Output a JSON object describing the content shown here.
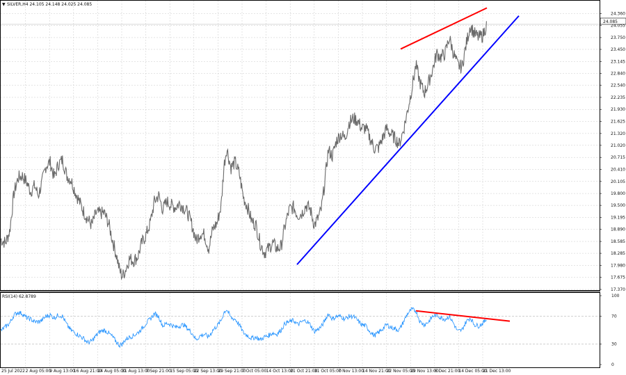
{
  "chart_data": {
    "type": "candlestick",
    "symbol_header": "SILVER,H4 24.105 24.148 24.025 24.085",
    "current_price": "24.085",
    "price_axis": {
      "ylim": [
        17.37,
        24.56
      ],
      "ticks": [
        "24.360",
        "24.055",
        "23.750",
        "23.450",
        "23.145",
        "22.840",
        "22.540",
        "22.235",
        "21.930",
        "21.625",
        "21.320",
        "21.020",
        "20.715",
        "20.410",
        "20.105",
        "19.800",
        "19.500",
        "19.195",
        "18.890",
        "18.585",
        "18.285",
        "17.980",
        "17.675",
        "17.370"
      ]
    },
    "rsi": {
      "label": "RSI(14) 62.8789",
      "ylim": [
        0,
        100
      ],
      "ticks": [
        "100",
        "70",
        "30",
        "0"
      ],
      "levels": [
        70,
        30
      ]
    },
    "x_tick_labels": [
      "25 Jul 2022",
      "2 Aug 05:00",
      "9 Aug 13:00",
      "16 Aug 21:00",
      "24 Aug 05:00",
      "31 Aug 13:00",
      "7 Sep 21:00",
      "15 Sep 05:00",
      "22 Sep 13:00",
      "29 Sep 21:00",
      "7 Oct 05:00",
      "14 Oct 13:00",
      "21 Oct 21:00",
      "31 Oct 05:00",
      "7 Nov 13:00",
      "14 Nov 21:00",
      "22 Nov 05:00",
      "29 Nov 13:00",
      "6 Dec 21:00",
      "14 Dec 05:00",
      "21 Dec 13:00"
    ],
    "price_path": [
      [
        0,
        18.65
      ],
      [
        8,
        18.55
      ],
      [
        14,
        18.85
      ],
      [
        20,
        19.8
      ],
      [
        26,
        20.2
      ],
      [
        32,
        20.25
      ],
      [
        38,
        20.1
      ],
      [
        44,
        19.85
      ],
      [
        50,
        20.0
      ],
      [
        55,
        19.75
      ],
      [
        60,
        20.05
      ],
      [
        66,
        20.5
      ],
      [
        72,
        20.6
      ],
      [
        78,
        20.2
      ],
      [
        84,
        20.55
      ],
      [
        90,
        20.65
      ],
      [
        96,
        20.25
      ],
      [
        102,
        20.15
      ],
      [
        108,
        19.85
      ],
      [
        114,
        19.6
      ],
      [
        120,
        19.35
      ],
      [
        126,
        19.15
      ],
      [
        132,
        19.0
      ],
      [
        138,
        19.3
      ],
      [
        144,
        19.3
      ],
      [
        150,
        19.3
      ],
      [
        156,
        19.05
      ],
      [
        162,
        18.6
      ],
      [
        168,
        18.2
      ],
      [
        172,
        17.85
      ],
      [
        176,
        17.7
      ],
      [
        180,
        17.85
      ],
      [
        186,
        18.15
      ],
      [
        192,
        18.1
      ],
      [
        198,
        18.2
      ],
      [
        204,
        18.55
      ],
      [
        210,
        18.75
      ],
      [
        216,
        19.05
      ],
      [
        222,
        19.6
      ],
      [
        228,
        19.75
      ],
      [
        234,
        19.4
      ],
      [
        240,
        19.6
      ],
      [
        246,
        19.5
      ],
      [
        252,
        19.45
      ],
      [
        258,
        19.55
      ],
      [
        264,
        19.45
      ],
      [
        270,
        19.3
      ],
      [
        276,
        19.0
      ],
      [
        282,
        18.6
      ],
      [
        288,
        18.8
      ],
      [
        294,
        18.75
      ],
      [
        300,
        18.4
      ],
      [
        306,
        18.9
      ],
      [
        312,
        19.05
      ],
      [
        318,
        19.5
      ],
      [
        322,
        20.5
      ],
      [
        326,
        20.95
      ],
      [
        332,
        20.45
      ],
      [
        338,
        20.6
      ],
      [
        344,
        20.3
      ],
      [
        350,
        19.7
      ],
      [
        356,
        19.45
      ],
      [
        362,
        19.1
      ],
      [
        368,
        19.0
      ],
      [
        374,
        18.55
      ],
      [
        380,
        18.3
      ],
      [
        386,
        18.4
      ],
      [
        392,
        18.55
      ],
      [
        398,
        18.4
      ],
      [
        404,
        18.45
      ],
      [
        410,
        19.0
      ],
      [
        416,
        19.4
      ],
      [
        422,
        19.45
      ],
      [
        428,
        19.25
      ],
      [
        434,
        19.3
      ],
      [
        440,
        19.5
      ],
      [
        446,
        19.4
      ],
      [
        452,
        19.0
      ],
      [
        458,
        19.2
      ],
      [
        462,
        19.4
      ],
      [
        466,
        19.95
      ],
      [
        472,
        20.9
      ],
      [
        478,
        20.75
      ],
      [
        484,
        21.15
      ],
      [
        490,
        21.3
      ],
      [
        496,
        21.2
      ],
      [
        502,
        21.6
      ],
      [
        508,
        21.7
      ],
      [
        514,
        21.65
      ],
      [
        520,
        21.45
      ],
      [
        526,
        21.45
      ],
      [
        532,
        21.2
      ],
      [
        538,
        20.95
      ],
      [
        544,
        20.95
      ],
      [
        550,
        21.2
      ],
      [
        556,
        21.45
      ],
      [
        562,
        21.3
      ],
      [
        568,
        21.2
      ],
      [
        574,
        21.05
      ],
      [
        580,
        21.4
      ],
      [
        586,
        21.9
      ],
      [
        592,
        22.45
      ],
      [
        598,
        23.05
      ],
      [
        604,
        22.6
      ],
      [
        610,
        22.35
      ],
      [
        616,
        22.6
      ],
      [
        622,
        22.95
      ],
      [
        628,
        23.35
      ],
      [
        634,
        23.25
      ],
      [
        640,
        23.35
      ],
      [
        646,
        23.75
      ],
      [
        652,
        23.35
      ],
      [
        658,
        23.05
      ],
      [
        664,
        23.0
      ],
      [
        670,
        23.55
      ],
      [
        676,
        24.05
      ],
      [
        682,
        23.85
      ],
      [
        688,
        23.75
      ],
      [
        694,
        23.8
      ],
      [
        700,
        24.1
      ]
    ],
    "rsi_path": [
      [
        0,
        48
      ],
      [
        8,
        55
      ],
      [
        14,
        60
      ],
      [
        20,
        72
      ],
      [
        26,
        76
      ],
      [
        32,
        74
      ],
      [
        38,
        68
      ],
      [
        44,
        66
      ],
      [
        50,
        62
      ],
      [
        55,
        62
      ],
      [
        60,
        64
      ],
      [
        66,
        70
      ],
      [
        72,
        72
      ],
      [
        78,
        68
      ],
      [
        84,
        72
      ],
      [
        90,
        70
      ],
      [
        96,
        58
      ],
      [
        102,
        50
      ],
      [
        108,
        46
      ],
      [
        114,
        42
      ],
      [
        120,
        38
      ],
      [
        126,
        32
      ],
      [
        132,
        34
      ],
      [
        138,
        42
      ],
      [
        144,
        48
      ],
      [
        150,
        50
      ],
      [
        156,
        46
      ],
      [
        162,
        40
      ],
      [
        168,
        32
      ],
      [
        172,
        28
      ],
      [
        176,
        30
      ],
      [
        180,
        36
      ],
      [
        186,
        40
      ],
      [
        192,
        42
      ],
      [
        198,
        46
      ],
      [
        204,
        52
      ],
      [
        210,
        60
      ],
      [
        216,
        66
      ],
      [
        222,
        74
      ],
      [
        228,
        70
      ],
      [
        234,
        56
      ],
      [
        240,
        60
      ],
      [
        246,
        58
      ],
      [
        252,
        54
      ],
      [
        258,
        56
      ],
      [
        264,
        58
      ],
      [
        270,
        52
      ],
      [
        276,
        46
      ],
      [
        282,
        36
      ],
      [
        288,
        42
      ],
      [
        294,
        44
      ],
      [
        300,
        40
      ],
      [
        306,
        50
      ],
      [
        312,
        56
      ],
      [
        318,
        64
      ],
      [
        322,
        76
      ],
      [
        326,
        80
      ],
      [
        332,
        68
      ],
      [
        338,
        66
      ],
      [
        344,
        58
      ],
      [
        350,
        46
      ],
      [
        356,
        42
      ],
      [
        362,
        38
      ],
      [
        368,
        40
      ],
      [
        374,
        36
      ],
      [
        380,
        40
      ],
      [
        386,
        42
      ],
      [
        392,
        46
      ],
      [
        398,
        44
      ],
      [
        404,
        50
      ],
      [
        410,
        60
      ],
      [
        416,
        62
      ],
      [
        422,
        64
      ],
      [
        428,
        58
      ],
      [
        434,
        62
      ],
      [
        440,
        64
      ],
      [
        446,
        58
      ],
      [
        452,
        48
      ],
      [
        458,
        52
      ],
      [
        462,
        55
      ],
      [
        466,
        62
      ],
      [
        472,
        74
      ],
      [
        478,
        66
      ],
      [
        484,
        70
      ],
      [
        490,
        70
      ],
      [
        496,
        66
      ],
      [
        502,
        70
      ],
      [
        508,
        70
      ],
      [
        514,
        64
      ],
      [
        520,
        58
      ],
      [
        526,
        56
      ],
      [
        532,
        48
      ],
      [
        538,
        42
      ],
      [
        544,
        46
      ],
      [
        550,
        52
      ],
      [
        556,
        58
      ],
      [
        562,
        54
      ],
      [
        568,
        52
      ],
      [
        574,
        50
      ],
      [
        580,
        62
      ],
      [
        586,
        74
      ],
      [
        592,
        80
      ],
      [
        598,
        78
      ],
      [
        604,
        62
      ],
      [
        610,
        58
      ],
      [
        616,
        62
      ],
      [
        622,
        70
      ],
      [
        628,
        72
      ],
      [
        634,
        68
      ],
      [
        640,
        66
      ],
      [
        646,
        70
      ],
      [
        652,
        60
      ],
      [
        658,
        48
      ],
      [
        664,
        50
      ],
      [
        670,
        62
      ],
      [
        676,
        68
      ],
      [
        682,
        58
      ],
      [
        688,
        56
      ],
      [
        694,
        60
      ],
      [
        700,
        66
      ]
    ],
    "annotations": [
      {
        "name": "price-resistance-line",
        "color": "#ff0000",
        "from": [
          576,
          23.46
        ],
        "to": [
          700,
          24.5
        ]
      },
      {
        "name": "price-support-line",
        "color": "#0000ff",
        "from": [
          427,
          18.0
        ],
        "to": [
          746,
          24.3
        ]
      },
      {
        "name": "rsi-divergence-line",
        "color": "#ff0000",
        "from": [
          598,
          78
        ],
        "to": [
          733,
          63
        ]
      }
    ],
    "colors": {
      "price": "#6a6a6a",
      "rsi": "#1e90ff",
      "grid": "#c8c8c8"
    }
  }
}
